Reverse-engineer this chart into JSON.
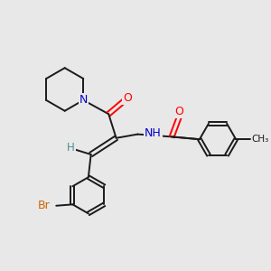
{
  "background_color": "#e8e8e8",
  "bond_color": "#1a1a1a",
  "atom_colors": {
    "N": "#0000cc",
    "O": "#ff0000",
    "Br": "#cc6600",
    "H": "#4a9090",
    "C": "#1a1a1a"
  },
  "figsize": [
    3.0,
    3.0
  ],
  "dpi": 100,
  "lw": 1.4
}
